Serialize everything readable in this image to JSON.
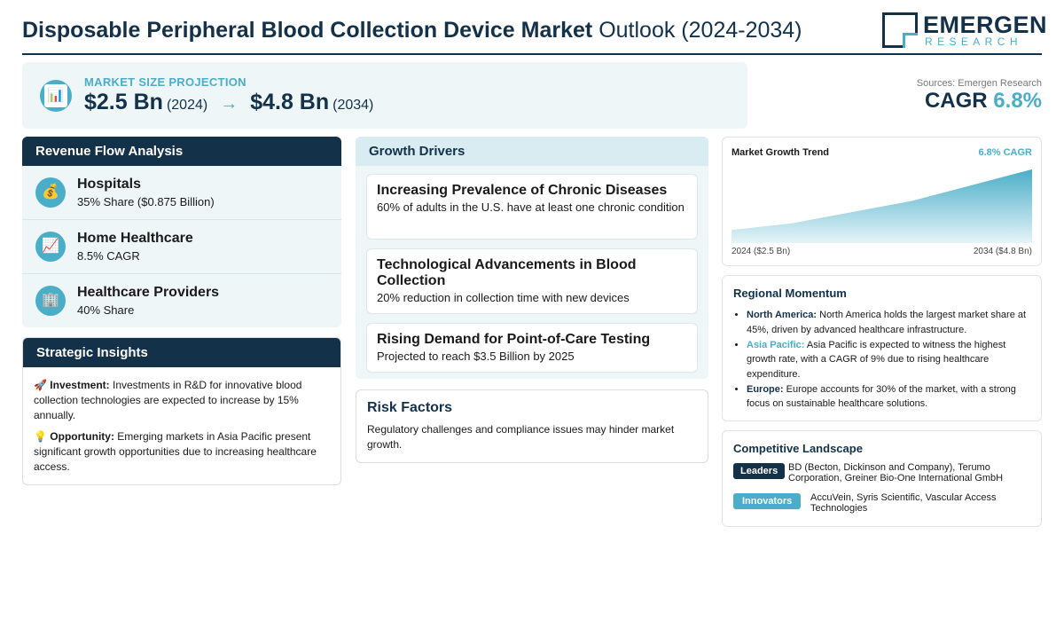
{
  "header": {
    "title_bold": "Disposable Peripheral Blood Collection Device Market",
    "title_rest": "Outlook (2024-2034)",
    "logo_name": "EMERGEN",
    "logo_sub": "RESEARCH"
  },
  "projection": {
    "label": "MARKET SIZE PROJECTION",
    "icon": "bar-chart-icon",
    "start_value": "$2.5 Bn",
    "start_year": "(2024)",
    "arrow": "→",
    "end_value": "$4.8 Bn",
    "end_year": "(2034)"
  },
  "sources": "Sources: Emergen Research",
  "cagr": {
    "label": "CAGR",
    "value": "6.8%"
  },
  "revenue": {
    "heading": "Revenue Flow Analysis",
    "items": [
      {
        "icon": "money-bag-icon",
        "glyph": "💰",
        "title": "Hospitals",
        "sub": "35% Share ($0.875 Billion)"
      },
      {
        "icon": "trend-up-icon",
        "glyph": "📈",
        "title": "Home Healthcare",
        "sub": "8.5% CAGR"
      },
      {
        "icon": "building-icon",
        "glyph": "🏢",
        "title": "Healthcare Providers",
        "sub": "40% Share"
      }
    ]
  },
  "strategic": {
    "heading": "Strategic Insights",
    "items": [
      {
        "glyph": "🚀",
        "label": "Investment:",
        "text": "Investments in R&D for innovative blood collection technologies are expected to increase by 15% annually."
      },
      {
        "glyph": "💡",
        "label": "Opportunity:",
        "text": "Emerging markets in Asia Pacific present significant growth opportunities due to increasing healthcare access."
      }
    ]
  },
  "drivers": {
    "heading": "Growth Drivers",
    "items": [
      {
        "title": "Increasing Prevalence of Chronic Diseases",
        "text": "60% of adults in the U.S. have at least one chronic condition"
      },
      {
        "title": "Technological Advancements in Blood Collection",
        "text": "20% reduction in collection time with new devices"
      },
      {
        "title": "Rising Demand for Point-of-Care Testing",
        "text": "Projected to reach $3.5 Billion by 2025"
      }
    ]
  },
  "risk": {
    "heading": "Risk Factors",
    "text": "Regulatory challenges and compliance issues may hinder market growth."
  },
  "trend": {
    "title": "Market Growth Trend",
    "cagr_label": "6.8% CAGR",
    "x_start": "2024 ($2.5 Bn)",
    "x_end": "2034 ($4.8 Bn)",
    "colors": {
      "top": "#4aaec8",
      "bottom": "#e6f4f8"
    }
  },
  "chart_data": {
    "type": "area",
    "x": [
      2024,
      2026,
      2030,
      2034
    ],
    "values": [
      2.5,
      2.75,
      3.6,
      4.8
    ],
    "ylim": [
      2.0,
      5.0
    ]
  },
  "regional": {
    "heading": "Regional Momentum",
    "items": [
      {
        "region": "North America:",
        "text": "North America holds the largest market share at 45%, driven by advanced healthcare infrastructure.",
        "accent": false
      },
      {
        "region": "Asia Pacific:",
        "text": "Asia Pacific is expected to witness the highest growth rate, with a CAGR of 9% due to rising healthcare expenditure.",
        "accent": true
      },
      {
        "region": "Europe:",
        "text": "Europe accounts for 30% of the market, with a strong focus on sustainable healthcare solutions.",
        "accent": false
      }
    ]
  },
  "competitive": {
    "heading": "Competitive Landscape",
    "leaders_label": "Leaders",
    "leaders": "BD (Becton, Dickinson and Company), Terumo Corporation, Greiner Bio-One International GmbH",
    "innovators_label": "Innovators",
    "innovators": "AccuVein, Syris Scientific, Vascular Access Technologies"
  }
}
